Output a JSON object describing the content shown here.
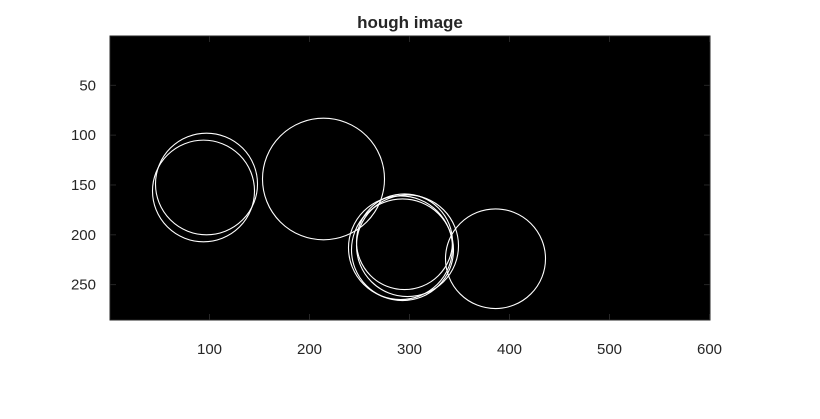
{
  "chart_data": {
    "type": "image",
    "title": "hough image",
    "xlabel": "",
    "ylabel": "",
    "xlim": [
      0.5,
      600.5
    ],
    "ylim": [
      0.5,
      285.5
    ],
    "y_direction": "reversed",
    "background_color": "#000000",
    "circle_color": "#ffffff",
    "grid": false,
    "x_ticks": [
      100,
      200,
      300,
      400,
      500,
      600
    ],
    "y_ticks": [
      50,
      100,
      150,
      200,
      250
    ],
    "circles": [
      {
        "cx": 97,
        "cy": 149,
        "r": 51
      },
      {
        "cx": 94,
        "cy": 156,
        "r": 51
      },
      {
        "cx": 214,
        "cy": 144,
        "r": 61
      },
      {
        "cx": 298,
        "cy": 211,
        "r": 51
      },
      {
        "cx": 293,
        "cy": 215,
        "r": 51
      },
      {
        "cx": 295,
        "cy": 207,
        "r": 48
      },
      {
        "cx": 291,
        "cy": 213,
        "r": 52
      },
      {
        "cx": 386,
        "cy": 224,
        "r": 50
      }
    ]
  }
}
